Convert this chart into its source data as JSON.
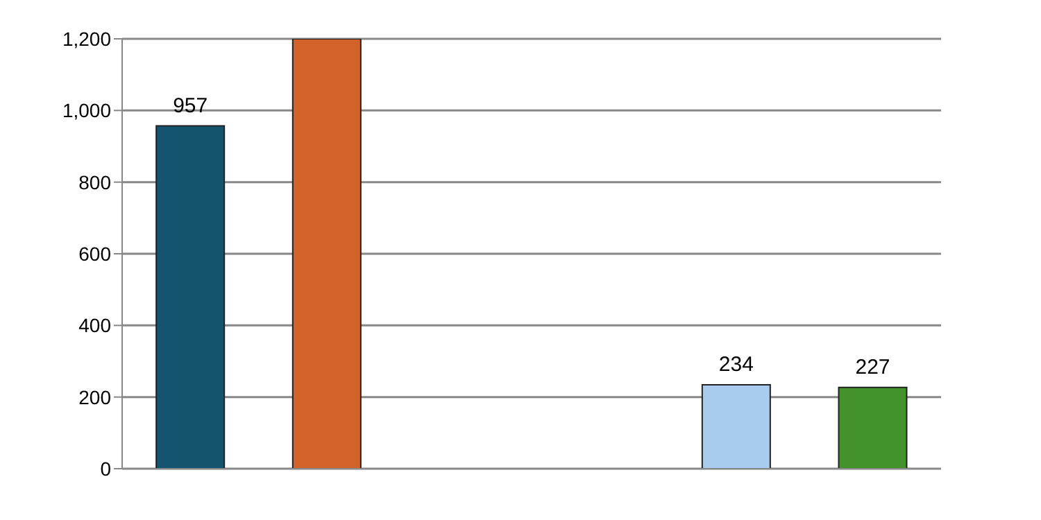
{
  "chart_data": {
    "type": "bar",
    "categories": [
      null,
      null,
      null,
      null,
      null,
      null
    ],
    "values": [
      957,
      1200,
      null,
      null,
      234,
      227
    ],
    "colors": [
      "#14546f",
      "#d1632a",
      "#ffffff",
      "#ffffff",
      "#a9cbed",
      "#43922a"
    ],
    "value_labels": [
      "957",
      null,
      null,
      null,
      "234",
      "227"
    ],
    "ylim": [
      0,
      1200
    ],
    "yticks": [
      {
        "value": 0,
        "label": "0"
      },
      {
        "value": 200,
        "label": "200"
      },
      {
        "value": 400,
        "label": "400"
      },
      {
        "value": 600,
        "label": "600"
      },
      {
        "value": 800,
        "label": "800"
      },
      {
        "value": 1000,
        "label": "1,000"
      },
      {
        "value": 1200,
        "label": "1,200"
      }
    ],
    "grid": "y"
  }
}
